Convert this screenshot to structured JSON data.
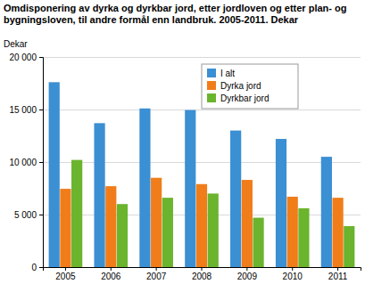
{
  "chart_data": {
    "type": "bar",
    "title": "Omdisponering av dyrka og dyrkbar jord, etter jordloven og etter plan- og bygningsloven, til andre formål enn landbruk. 2005-2011. Dekar",
    "y_label": "Dekar",
    "categories": [
      "2005",
      "2006",
      "2007",
      "2008",
      "2009",
      "2010",
      "2011"
    ],
    "series": [
      {
        "name": "I alt",
        "color": "#3b8fd3",
        "values": [
          17600,
          13700,
          15100,
          14950,
          13000,
          12200,
          10500
        ]
      },
      {
        "name": "Dyrka jord",
        "color": "#f07d1a",
        "values": [
          7450,
          7700,
          8500,
          7900,
          8300,
          6700,
          6600
        ]
      },
      {
        "name": "Dyrkbar jord",
        "color": "#6bb42e",
        "values": [
          10200,
          6000,
          6600,
          7000,
          4700,
          5600,
          3900
        ]
      }
    ],
    "ylim": [
      0,
      20000
    ],
    "yticks": [
      0,
      {
        "value": 5000,
        "label": "5 000"
      },
      {
        "value": 10000,
        "label": "10 000"
      },
      {
        "value": 15000,
        "label": "15 000"
      },
      {
        "value": 20000,
        "label": "20 000"
      }
    ],
    "grid": true,
    "legend": "top-right"
  }
}
